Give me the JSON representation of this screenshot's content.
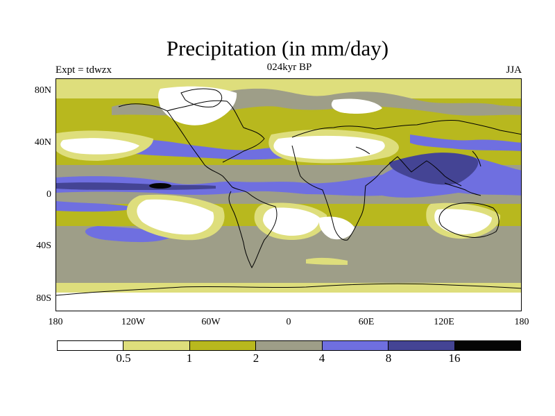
{
  "title": "Precipitation (in mm/day)",
  "experiment_label": "Expt = tdwzx",
  "period_label": "024kyr BP",
  "season_label": "JJA",
  "map": {
    "projection": "cylindrical-equidistant",
    "lat_labels": [
      "80N",
      "40N",
      "0",
      "40S",
      "80S"
    ],
    "lon_labels": [
      "180",
      "120W",
      "60W",
      "0",
      "60E",
      "120E",
      "180"
    ],
    "coastlines": "black"
  },
  "colorbar": {
    "colors": [
      "#ffffff",
      "#dede7c",
      "#b8b81e",
      "#9e9e88",
      "#6f6fe0",
      "#444494",
      "#050505"
    ],
    "labels": [
      "0.5",
      "1",
      "2",
      "4",
      "8",
      "16"
    ]
  }
}
